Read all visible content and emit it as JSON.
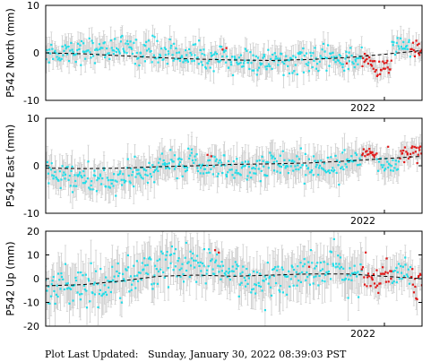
{
  "footer": {
    "label": "Plot Last Updated:",
    "value": "Sunday, January 30, 2022 08:39:03 PST"
  },
  "colors": {
    "point_main": "#22dde8",
    "point_recent": "#e01818",
    "errorbar": "#cccccc",
    "trend": "#000000"
  },
  "chart_data": [
    {
      "type": "scatter",
      "ylabel": "P542 North (mm)",
      "ylim": [
        -10,
        10
      ],
      "yticks": [
        -10,
        0,
        10
      ],
      "x_tick_labels": [
        "",
        "2022"
      ],
      "trend": [
        0.0,
        -0.2,
        -0.6,
        -1.0,
        -1.3,
        -1.5,
        -1.6,
        -1.4,
        -1.0,
        -0.3,
        0.5
      ],
      "bands": [
        {
          "start": 0.0,
          "end": 0.84,
          "color": "main",
          "center": [
            0.0,
            0.5,
            1.0,
            0.5,
            0.0,
            -1.0,
            -1.6,
            -2.0,
            -1.8,
            -1.5,
            -1.2
          ],
          "spread": 1.3,
          "err": 2.2
        },
        {
          "start": 0.84,
          "end": 0.87,
          "color": "recent",
          "center": [
            -1.5
          ],
          "spread": 0.8,
          "err": 1.5
        },
        {
          "start": 0.87,
          "end": 0.92,
          "color": "recent",
          "center": [
            -3.5
          ],
          "spread": 1.2,
          "err": 1.8
        },
        {
          "start": 0.92,
          "end": 0.97,
          "color": "main",
          "center": [
            1.5
          ],
          "spread": 1.2,
          "err": 2.0
        },
        {
          "start": 0.97,
          "end": 1.0,
          "color": "recent",
          "center": [
            0.5
          ],
          "spread": 1.0,
          "err": 1.6
        }
      ],
      "outliers": [
        {
          "x": 0.47,
          "y": 0.7,
          "color": "recent"
        },
        {
          "x": 0.48,
          "y": 1.0,
          "color": "recent"
        },
        {
          "x": 0.8,
          "y": -2.2,
          "color": "recent"
        }
      ]
    },
    {
      "type": "scatter",
      "ylabel": "P542 East (mm)",
      "ylim": [
        -10,
        10
      ],
      "yticks": [
        -10,
        0,
        10
      ],
      "x_tick_labels": [
        "",
        "2022"
      ],
      "trend": [
        -0.5,
        -0.6,
        -0.5,
        -0.2,
        0.0,
        0.3,
        0.4,
        0.6,
        1.0,
        1.5,
        2.0
      ],
      "bands": [
        {
          "start": 0.0,
          "end": 0.84,
          "color": "main",
          "center": [
            -1.5,
            -2.5,
            -3.5,
            -2.0,
            0.5,
            0.5,
            -0.5,
            0.0,
            0.5,
            0.0,
            0.5
          ],
          "spread": 1.5,
          "err": 2.8
        },
        {
          "start": 0.84,
          "end": 0.88,
          "color": "recent",
          "center": [
            2.5
          ],
          "spread": 0.8,
          "err": 1.6
        },
        {
          "start": 0.88,
          "end": 0.94,
          "color": "main",
          "center": [
            0.5
          ],
          "spread": 1.2,
          "err": 2.5
        },
        {
          "start": 0.94,
          "end": 1.0,
          "color": "recent",
          "center": [
            3.0
          ],
          "spread": 1.0,
          "err": 2.0
        }
      ],
      "outliers": [
        {
          "x": 0.43,
          "y": 2.3,
          "color": "recent"
        },
        {
          "x": 0.44,
          "y": 2.0,
          "color": "recent"
        },
        {
          "x": 0.91,
          "y": 4.0,
          "color": "recent"
        }
      ]
    },
    {
      "type": "scatter",
      "ylabel": "P542 Up (mm)",
      "ylim": [
        -20,
        20
      ],
      "yticks": [
        -20,
        -10,
        0,
        10,
        20
      ],
      "x_tick_labels": [
        "",
        "2022"
      ],
      "trend": [
        -3.0,
        -2.5,
        -1.0,
        1.0,
        1.5,
        1.0,
        1.5,
        2.0,
        2.0,
        1.0,
        0.0
      ],
      "bands": [
        {
          "start": 0.0,
          "end": 0.84,
          "color": "main",
          "center": [
            -4.0,
            -3.0,
            -2.0,
            3.0,
            6.0,
            5.0,
            1.0,
            0.0,
            2.0,
            4.0,
            1.0
          ],
          "spread": 4.0,
          "err": 7.5
        },
        {
          "start": 0.84,
          "end": 0.92,
          "color": "recent",
          "center": [
            1.0
          ],
          "spread": 3.0,
          "err": 5.0
        },
        {
          "start": 0.92,
          "end": 0.97,
          "color": "main",
          "center": [
            4.0
          ],
          "spread": 3.0,
          "err": 6.0
        },
        {
          "start": 0.97,
          "end": 1.0,
          "color": "recent",
          "center": [
            -1.0
          ],
          "spread": 3.0,
          "err": 5.0
        }
      ],
      "outliers": [
        {
          "x": 0.45,
          "y": 12.0,
          "color": "recent"
        },
        {
          "x": 0.46,
          "y": 11.0,
          "color": "recent"
        },
        {
          "x": 0.7,
          "y": 5.0,
          "color": "recent"
        }
      ]
    }
  ]
}
